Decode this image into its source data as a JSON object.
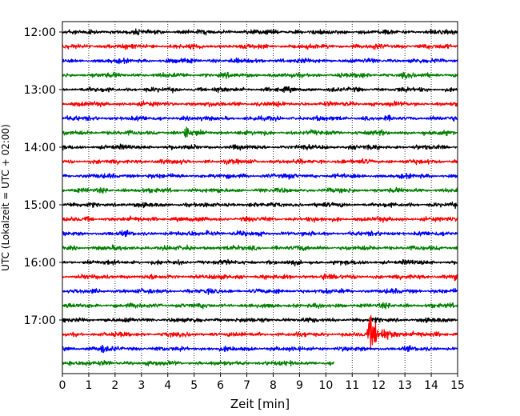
{
  "chart_data": {
    "type": "line",
    "subtype": "helicorder-seismogram",
    "xlabel": "Zeit  [min]",
    "ylabel": "UTC (Lokalzeit = UTC + 02:00)",
    "x_ticks": [
      0,
      1,
      2,
      3,
      4,
      5,
      6,
      7,
      8,
      9,
      10,
      11,
      12,
      13,
      14,
      15
    ],
    "xlim": [
      0,
      15
    ],
    "y_tick_labels": [
      "12:00",
      "13:00",
      "14:00",
      "15:00",
      "16:00",
      "17:00"
    ],
    "grid": "vertical dotted",
    "trace_interval_min": 15,
    "trace_colors": [
      "#000000",
      "#ff0000",
      "#0000ff",
      "#008000"
    ],
    "traces": [
      {
        "start": "12:00",
        "end_min": 15
      },
      {
        "start": "12:15",
        "end_min": 15
      },
      {
        "start": "12:30",
        "end_min": 15
      },
      {
        "start": "12:45",
        "end_min": 15,
        "events": [
          {
            "t": 12.9,
            "amp": 0.15
          }
        ]
      },
      {
        "start": "13:00",
        "end_min": 15
      },
      {
        "start": "13:15",
        "end_min": 15
      },
      {
        "start": "13:30",
        "end_min": 15
      },
      {
        "start": "13:45",
        "end_min": 15,
        "events": [
          {
            "t": 4.7,
            "amp": 0.7
          }
        ]
      },
      {
        "start": "14:00",
        "end_min": 15
      },
      {
        "start": "14:15",
        "end_min": 15
      },
      {
        "start": "14:30",
        "end_min": 15
      },
      {
        "start": "14:45",
        "end_min": 15
      },
      {
        "start": "15:00",
        "end_min": 15
      },
      {
        "start": "15:15",
        "end_min": 15
      },
      {
        "start": "15:30",
        "end_min": 15,
        "events": [
          {
            "t": 5.5,
            "amp": 0.35
          }
        ]
      },
      {
        "start": "15:45",
        "end_min": 15
      },
      {
        "start": "16:00",
        "end_min": 15
      },
      {
        "start": "16:15",
        "end_min": 15,
        "events": [
          {
            "t": 9.9,
            "amp": 0.35
          },
          {
            "t": 14.9,
            "amp": 0.25
          }
        ]
      },
      {
        "start": "16:30",
        "end_min": 15
      },
      {
        "start": "16:45",
        "end_min": 15
      },
      {
        "start": "17:00",
        "end_min": 15
      },
      {
        "start": "17:15",
        "end_min": 15,
        "events": [
          {
            "t": 11.65,
            "amp": 1.9,
            "coda": true
          }
        ]
      },
      {
        "start": "17:30",
        "end_min": 15,
        "events": [
          {
            "t": 1.5,
            "amp": 0.4
          }
        ]
      },
      {
        "start": "17:45",
        "end_min": 10.3,
        "events": [
          {
            "t": 0.3,
            "amp": 0.35
          }
        ]
      }
    ]
  }
}
